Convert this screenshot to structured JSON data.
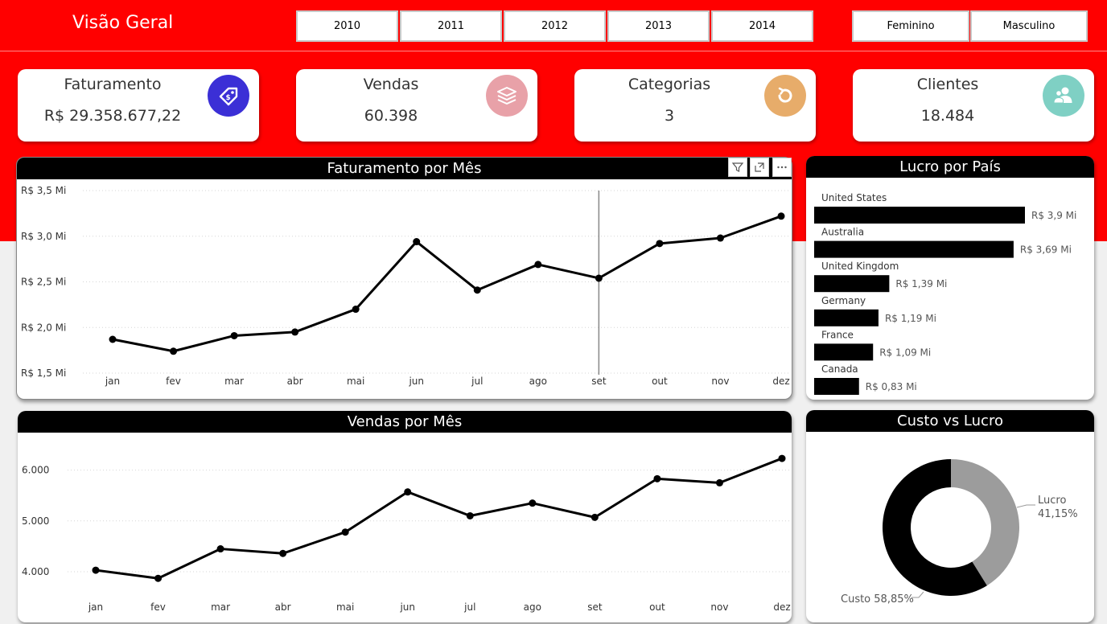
{
  "header": {
    "title": "Visão Geral",
    "years": [
      "2010",
      "2011",
      "2012",
      "2013",
      "2014"
    ],
    "genders": [
      "Feminino",
      "Masculino"
    ]
  },
  "kpis": [
    {
      "label": "Faturamento",
      "value": "R$ 29.358.677,22",
      "icon": "price-tag-icon",
      "color": "#3b2fd6"
    },
    {
      "label": "Vendas",
      "value": "60.398",
      "icon": "layers-icon",
      "color": "#e8a1a8"
    },
    {
      "label": "Categorias",
      "value": "3",
      "icon": "refresh-icon",
      "color": "#e7ac6a"
    },
    {
      "label": "Clientes",
      "value": "18.484",
      "icon": "users-icon",
      "color": "#7fd0c4"
    }
  ],
  "faturamento_chart": {
    "title": "Faturamento por Mês",
    "yticks": [
      "R$ 3,5 Mi",
      "R$ 3,0 Mi",
      "R$ 2,5 Mi",
      "R$ 2,0 Mi",
      "R$ 1,5 Mi"
    ]
  },
  "vendas_chart": {
    "title": "Vendas por Mês",
    "yticks": [
      "6.000",
      "5.000",
      "4.000"
    ]
  },
  "lucro_chart": {
    "title": "Lucro por País"
  },
  "custo_chart": {
    "title": "Custo vs Lucro",
    "lucro_label": "Lucro",
    "lucro_pct": "41,15%",
    "custo_label": "Custo 58,85%"
  },
  "chart_data": [
    {
      "type": "line",
      "title": "Faturamento por Mês",
      "x": [
        "jan",
        "fev",
        "mar",
        "abr",
        "mai",
        "jun",
        "jul",
        "ago",
        "set",
        "out",
        "nov",
        "dez"
      ],
      "series": [
        {
          "values": [
            1.87,
            1.74,
            1.91,
            1.95,
            2.2,
            2.94,
            2.41,
            2.69,
            2.54,
            2.92,
            2.98,
            3.22
          ]
        }
      ],
      "ylim": [
        1.5,
        3.5
      ],
      "yunit": "R$ Mi",
      "grid": true
    },
    {
      "type": "line",
      "title": "Vendas por Mês",
      "x": [
        "jan",
        "fev",
        "mar",
        "abr",
        "mai",
        "jun",
        "jul",
        "ago",
        "set",
        "out",
        "nov",
        "dez"
      ],
      "series": [
        {
          "values": [
            4030,
            3870,
            4450,
            4360,
            4780,
            5570,
            5100,
            5350,
            5070,
            5830,
            5750,
            6230
          ]
        }
      ],
      "ylim": [
        3700,
        6400
      ],
      "yticks": [
        4000,
        5000,
        6000
      ],
      "grid": true
    },
    {
      "type": "bar",
      "orientation": "horizontal",
      "title": "Lucro por País",
      "categories": [
        "United States",
        "Australia",
        "United Kingdom",
        "Germany",
        "France",
        "Canada"
      ],
      "values": [
        3.9,
        3.69,
        1.39,
        1.19,
        1.09,
        0.83
      ],
      "labels": [
        "R$ 3,9 Mi",
        "R$ 3,69 Mi",
        "R$ 1,39 Mi",
        "R$ 1,19 Mi",
        "R$ 1,09 Mi",
        "R$ 0,83 Mi"
      ],
      "xlim": [
        0,
        3.9
      ]
    },
    {
      "type": "pie",
      "title": "Custo vs Lucro",
      "categories": [
        "Lucro",
        "Custo"
      ],
      "values": [
        41.15,
        58.85
      ],
      "colors": [
        "#9c9c9c",
        "#000000"
      ]
    }
  ]
}
